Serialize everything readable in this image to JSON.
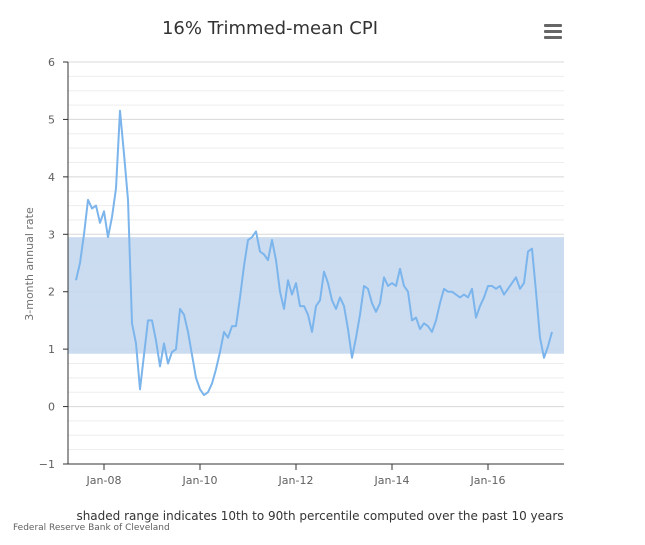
{
  "chart_data": {
    "type": "line",
    "title": "16% Trimmed-mean CPI",
    "ylabel": "3-month annual rate",
    "xlabel": "",
    "ylim": [
      -1,
      6
    ],
    "y_ticks": [
      -1,
      0,
      1,
      2,
      3,
      4,
      5,
      6
    ],
    "x_ticks": [
      "Jan-08",
      "Jan-10",
      "Jan-12",
      "Jan-14",
      "Jan-16"
    ],
    "x_range": [
      "2007-04",
      "2017-08"
    ],
    "grid": true,
    "band": {
      "low": 0.92,
      "high": 2.95,
      "color": "#c5d8ef"
    },
    "series": [
      {
        "color": "#7cb5ec",
        "points": [
          [
            "2007-06",
            2.2
          ],
          [
            "2007-07",
            2.5
          ],
          [
            "2007-08",
            3.0
          ],
          [
            "2007-09",
            3.6
          ],
          [
            "2007-10",
            3.45
          ],
          [
            "2007-11",
            3.5
          ],
          [
            "2007-12",
            3.2
          ],
          [
            "2008-01",
            3.4
          ],
          [
            "2008-02",
            2.95
          ],
          [
            "2008-03",
            3.3
          ],
          [
            "2008-04",
            3.8
          ],
          [
            "2008-05",
            5.15
          ],
          [
            "2008-06",
            4.4
          ],
          [
            "2008-07",
            3.6
          ],
          [
            "2008-08",
            1.45
          ],
          [
            "2008-09",
            1.1
          ],
          [
            "2008-10",
            0.3
          ],
          [
            "2008-11",
            0.9
          ],
          [
            "2008-12",
            1.5
          ],
          [
            "2009-01",
            1.5
          ],
          [
            "2009-02",
            1.15
          ],
          [
            "2009-03",
            0.7
          ],
          [
            "2009-04",
            1.1
          ],
          [
            "2009-05",
            0.75
          ],
          [
            "2009-06",
            0.95
          ],
          [
            "2009-07",
            1.0
          ],
          [
            "2009-08",
            1.7
          ],
          [
            "2009-09",
            1.6
          ],
          [
            "2009-10",
            1.3
          ],
          [
            "2009-11",
            0.9
          ],
          [
            "2009-12",
            0.5
          ],
          [
            "2010-01",
            0.3
          ],
          [
            "2010-02",
            0.2
          ],
          [
            "2010-03",
            0.25
          ],
          [
            "2010-04",
            0.4
          ],
          [
            "2010-05",
            0.65
          ],
          [
            "2010-06",
            0.95
          ],
          [
            "2010-07",
            1.3
          ],
          [
            "2010-08",
            1.2
          ],
          [
            "2010-09",
            1.4
          ],
          [
            "2010-10",
            1.4
          ],
          [
            "2010-11",
            1.9
          ],
          [
            "2010-12",
            2.45
          ],
          [
            "2011-01",
            2.9
          ],
          [
            "2011-02",
            2.95
          ],
          [
            "2011-03",
            3.05
          ],
          [
            "2011-04",
            2.7
          ],
          [
            "2011-05",
            2.65
          ],
          [
            "2011-06",
            2.55
          ],
          [
            "2011-07",
            2.9
          ],
          [
            "2011-08",
            2.55
          ],
          [
            "2011-09",
            2.0
          ],
          [
            "2011-10",
            1.7
          ],
          [
            "2011-11",
            2.2
          ],
          [
            "2011-12",
            1.95
          ],
          [
            "2012-01",
            2.15
          ],
          [
            "2012-02",
            1.75
          ],
          [
            "2012-03",
            1.75
          ],
          [
            "2012-04",
            1.6
          ],
          [
            "2012-05",
            1.3
          ],
          [
            "2012-06",
            1.75
          ],
          [
            "2012-07",
            1.85
          ],
          [
            "2012-08",
            2.35
          ],
          [
            "2012-09",
            2.15
          ],
          [
            "2012-10",
            1.85
          ],
          [
            "2012-11",
            1.7
          ],
          [
            "2012-12",
            1.9
          ],
          [
            "2013-01",
            1.75
          ],
          [
            "2013-02",
            1.35
          ],
          [
            "2013-03",
            0.85
          ],
          [
            "2013-04",
            1.2
          ],
          [
            "2013-05",
            1.6
          ],
          [
            "2013-06",
            2.1
          ],
          [
            "2013-07",
            2.05
          ],
          [
            "2013-08",
            1.8
          ],
          [
            "2013-09",
            1.65
          ],
          [
            "2013-10",
            1.8
          ],
          [
            "2013-11",
            2.25
          ],
          [
            "2013-12",
            2.1
          ],
          [
            "2014-01",
            2.15
          ],
          [
            "2014-02",
            2.1
          ],
          [
            "2014-03",
            2.4
          ],
          [
            "2014-04",
            2.1
          ],
          [
            "2014-05",
            2.0
          ],
          [
            "2014-06",
            1.5
          ],
          [
            "2014-07",
            1.55
          ],
          [
            "2014-08",
            1.35
          ],
          [
            "2014-09",
            1.45
          ],
          [
            "2014-10",
            1.4
          ],
          [
            "2014-11",
            1.3
          ],
          [
            "2014-12",
            1.5
          ],
          [
            "2015-01",
            1.8
          ],
          [
            "2015-02",
            2.05
          ],
          [
            "2015-03",
            2.0
          ],
          [
            "2015-04",
            2.0
          ],
          [
            "2015-05",
            1.95
          ],
          [
            "2015-06",
            1.9
          ],
          [
            "2015-07",
            1.95
          ],
          [
            "2015-08",
            1.9
          ],
          [
            "2015-09",
            2.05
          ],
          [
            "2015-10",
            1.55
          ],
          [
            "2015-11",
            1.75
          ],
          [
            "2015-12",
            1.9
          ],
          [
            "2016-01",
            2.1
          ],
          [
            "2016-02",
            2.1
          ],
          [
            "2016-03",
            2.05
          ],
          [
            "2016-04",
            2.1
          ],
          [
            "2016-05",
            1.95
          ],
          [
            "2016-06",
            2.05
          ],
          [
            "2016-07",
            2.15
          ],
          [
            "2016-08",
            2.25
          ],
          [
            "2016-09",
            2.05
          ],
          [
            "2016-10",
            2.15
          ],
          [
            "2016-11",
            2.7
          ],
          [
            "2016-12",
            2.75
          ],
          [
            "2017-01",
            2.0
          ],
          [
            "2017-02",
            1.2
          ],
          [
            "2017-03",
            0.85
          ],
          [
            "2017-04",
            1.05
          ],
          [
            "2017-05",
            1.3
          ]
        ]
      }
    ],
    "note": "shaded range indicates 10th to 90th percentile computed over the past 10 years",
    "credit": "Federal Reserve Bank of Cleveland"
  },
  "icons": {
    "menu": "hamburger-menu-icon"
  }
}
